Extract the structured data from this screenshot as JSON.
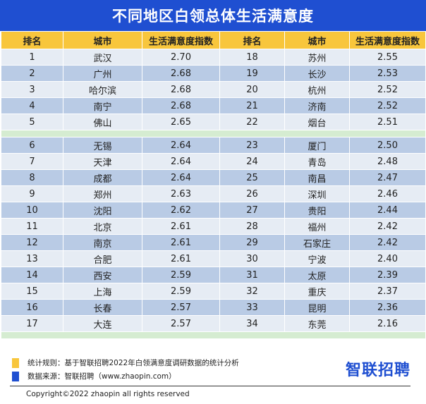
{
  "title": "不同地区白领总体生活满意度",
  "headers": [
    "排名",
    "城市",
    "生活满意度指数",
    "排名",
    "城市",
    "生活满意度指数"
  ],
  "rows": [
    [
      "1",
      "武汉",
      "2.70",
      "18",
      "苏州",
      "2.55"
    ],
    [
      "2",
      "广州",
      "2.68",
      "19",
      "长沙",
      "2.53"
    ],
    [
      "3",
      "哈尔滨",
      "2.68",
      "20",
      "杭州",
      "2.52"
    ],
    [
      "4",
      "南宁",
      "2.68",
      "21",
      "济南",
      "2.52"
    ],
    [
      "5",
      "佛山",
      "2.65",
      "22",
      "烟台",
      "2.51"
    ],
    [
      "6",
      "无锡",
      "2.64",
      "23",
      "厦门",
      "2.50"
    ],
    [
      "7",
      "天津",
      "2.64",
      "24",
      "青岛",
      "2.48"
    ],
    [
      "8",
      "成都",
      "2.64",
      "25",
      "南昌",
      "2.47"
    ],
    [
      "9",
      "郑州",
      "2.63",
      "26",
      "深圳",
      "2.46"
    ],
    [
      "10",
      "沈阳",
      "2.62",
      "27",
      "贵阳",
      "2.44"
    ],
    [
      "11",
      "北京",
      "2.61",
      "28",
      "福州",
      "2.42"
    ],
    [
      "12",
      "南京",
      "2.61",
      "29",
      "石家庄",
      "2.42"
    ],
    [
      "13",
      "合肥",
      "2.61",
      "30",
      "宁波",
      "2.40"
    ],
    [
      "14",
      "西安",
      "2.59",
      "31",
      "太原",
      "2.39"
    ],
    [
      "15",
      "上海",
      "2.59",
      "32",
      "重庆",
      "2.37"
    ],
    [
      "16",
      "长春",
      "2.57",
      "33",
      "昆明",
      "2.36"
    ],
    [
      "17",
      "大连",
      "2.57",
      "34",
      "东莞",
      "2.16"
    ]
  ],
  "footer": {
    "rule_label": "统计规则：基于智联招聘2022年白领满意度调研数据的统计分析",
    "source_label": "数据来源：智联招聘（www.zhaopin.com）",
    "logo_text": "智联招聘",
    "copyright": "Copyright©2022 zhaopin all rights reserved"
  },
  "colors": {
    "title_bg": "#1f4fd1",
    "header_bg": "#f8c63c",
    "row_light": "#e6ecf4",
    "row_dark": "#b9cbe5",
    "separator": "#d5ecd1",
    "rule_swatch": "#f8c63c",
    "source_swatch": "#1f4fd1"
  }
}
